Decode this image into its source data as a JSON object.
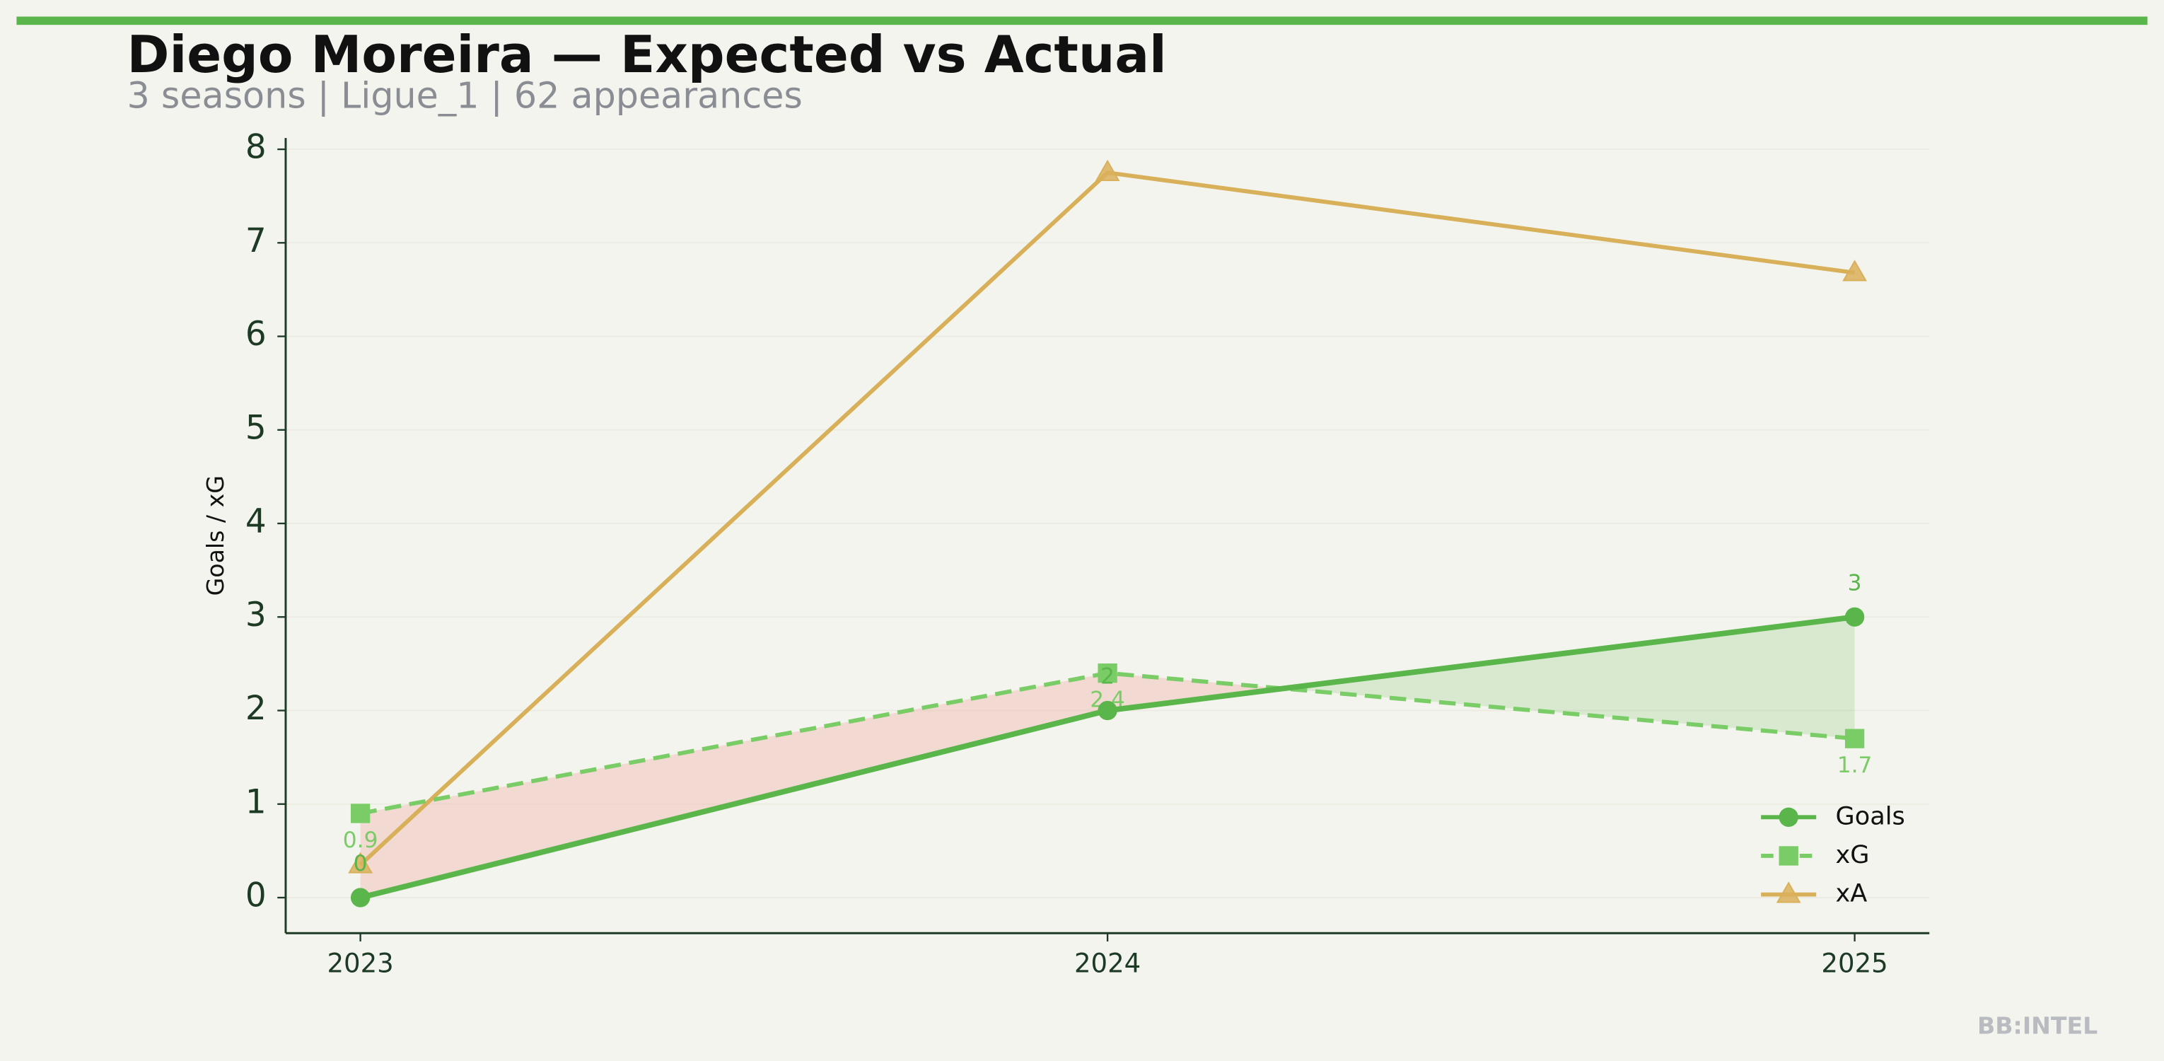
{
  "chart_data": {
    "type": "line",
    "title": "Diego Moreira — Expected vs Actual",
    "subtitle": "3 seasons | Ligue_1 | 62 appearances",
    "y_label": "Goals / xG",
    "watermark": "BB:INTEL",
    "categories": [
      "2023",
      "2024",
      "2025"
    ],
    "series": [
      {
        "name": "Goals",
        "color": "#5ab54a",
        "marker": "circle",
        "dash": false,
        "values": [
          0,
          2,
          3
        ],
        "labels_position": "above"
      },
      {
        "name": "xG",
        "color": "#7acc66",
        "marker": "square",
        "dash": true,
        "values": [
          0.9,
          2.4,
          1.7
        ],
        "labels_position": "below"
      },
      {
        "name": "xA",
        "color": "#d9b05a",
        "marker": "triangle",
        "dash": false,
        "values": [
          0.35,
          7.75,
          6.68
        ]
      }
    ],
    "ylim": [
      -0.38,
      8.12
    ],
    "yticks": [
      0,
      1,
      2,
      3,
      4,
      5,
      6,
      7,
      8
    ],
    "grid": true,
    "legend": "lower right",
    "fill_above_color": "#5ab54a",
    "fill_below_color": "#f0a094"
  }
}
